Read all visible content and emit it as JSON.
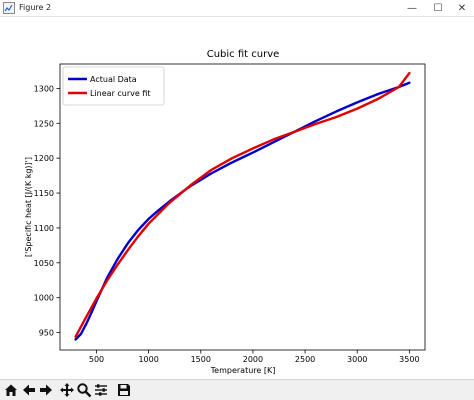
{
  "window": {
    "title": "Figure 2",
    "controls": {
      "minimize": "—",
      "maximize": "☐",
      "close": "✕"
    }
  },
  "toolbar": {
    "tools": [
      "home-icon",
      "back-arrow-icon",
      "forward-arrow-icon",
      "pan-icon",
      "zoom-icon",
      "configure-subplots-icon",
      "save-icon"
    ]
  },
  "chart_data": {
    "type": "line",
    "title": "Cubic fit curve",
    "xlabel": "Temperature [K]",
    "ylabel": "['Specific heat [J/(K kg)]']",
    "xlim": [
      150,
      3650
    ],
    "ylim": [
      925,
      1335
    ],
    "xticks": [
      500,
      1000,
      1500,
      2000,
      2500,
      3000,
      3500
    ],
    "yticks": [
      950,
      1000,
      1050,
      1100,
      1150,
      1200,
      1250,
      1300
    ],
    "grid": false,
    "legend": "top-left",
    "series": [
      {
        "name": "Actual Data",
        "color": "#0000cc",
        "x": [
          300,
          350,
          400,
          450,
          500,
          600,
          700,
          800,
          900,
          1000,
          1100,
          1200,
          1300,
          1400,
          1500,
          1600,
          1700,
          1800,
          1900,
          2000,
          2200,
          2400,
          2600,
          2800,
          3000,
          3200,
          3400,
          3500
        ],
        "y": [
          940,
          948,
          962,
          978,
          995,
          1028,
          1055,
          1078,
          1097,
          1113,
          1126,
          1138,
          1149,
          1160,
          1169,
          1178,
          1186,
          1194,
          1201,
          1208,
          1223,
          1238,
          1253,
          1267,
          1280,
          1292,
          1302,
          1308
        ]
      },
      {
        "name": "Linear curve fit",
        "color": "#e00000",
        "x": [
          300,
          400,
          500,
          600,
          700,
          800,
          900,
          1000,
          1200,
          1400,
          1600,
          1800,
          2000,
          2200,
          2400,
          2600,
          2800,
          3000,
          3200,
          3400,
          3500
        ],
        "y": [
          944,
          972,
          999,
          1024,
          1047,
          1068,
          1088,
          1106,
          1136,
          1161,
          1183,
          1200,
          1214,
          1227,
          1238,
          1249,
          1259,
          1271,
          1285,
          1302,
          1322
        ]
      }
    ]
  }
}
